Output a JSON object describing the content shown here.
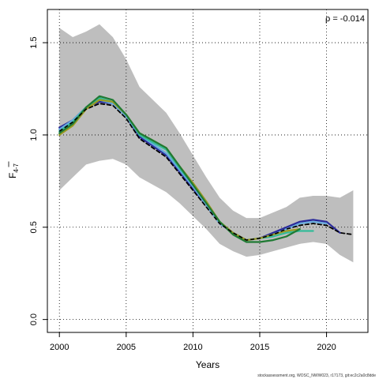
{
  "chart_data": {
    "type": "line",
    "title": "",
    "xlabel": "Years",
    "ylabel_main": "F",
    "ylabel_sub": "4-7",
    "xlim": [
      1999.1,
      2023.1
    ],
    "ylim": [
      -0.07,
      1.68
    ],
    "xticks": [
      2000,
      2005,
      2010,
      2015,
      2020
    ],
    "yticks": [
      0.0,
      0.5,
      1.0,
      1.5
    ],
    "ytick_labels": [
      "0.0",
      "0.5",
      "1.0",
      "1.5"
    ],
    "grid": true,
    "annotation": "ρ = -0.014",
    "footer": "stockassessment.org, WOSC_NWW023, r17173, git:ec2c2a0c8dde",
    "confidence_band": {
      "x": [
        2000,
        2001,
        2002,
        2003,
        2004,
        2005,
        2006,
        2007,
        2008,
        2009,
        2010,
        2011,
        2012,
        2013,
        2014,
        2015,
        2016,
        2017,
        2018,
        2019,
        2020,
        2021,
        2022
      ],
      "upper": [
        1.58,
        1.53,
        1.56,
        1.6,
        1.53,
        1.41,
        1.26,
        1.19,
        1.12,
        1.01,
        0.89,
        0.77,
        0.66,
        0.59,
        0.55,
        0.55,
        0.58,
        0.61,
        0.66,
        0.67,
        0.67,
        0.66,
        0.7
      ],
      "lower": [
        0.7,
        0.77,
        0.84,
        0.86,
        0.87,
        0.84,
        0.77,
        0.73,
        0.69,
        0.63,
        0.56,
        0.49,
        0.41,
        0.37,
        0.34,
        0.35,
        0.37,
        0.39,
        0.41,
        0.42,
        0.41,
        0.35,
        0.31
      ]
    },
    "series": [
      {
        "color": "#000000",
        "dashed": true,
        "width": 1.6,
        "x": [
          2000,
          2001,
          2002,
          2003,
          2004,
          2005,
          2006,
          2007,
          2008,
          2009,
          2010,
          2011,
          2012,
          2013,
          2014,
          2015,
          2016,
          2017,
          2018,
          2019,
          2020,
          2021,
          2022
        ],
        "values": [
          1.02,
          1.07,
          1.14,
          1.17,
          1.16,
          1.09,
          0.98,
          0.93,
          0.88,
          0.79,
          0.7,
          0.61,
          0.52,
          0.47,
          0.43,
          0.44,
          0.46,
          0.49,
          0.51,
          0.52,
          0.51,
          0.47,
          0.46
        ]
      },
      {
        "color": "#2a2a9a",
        "dashed": false,
        "width": 2.2,
        "x": [
          2000,
          2001,
          2002,
          2003,
          2004,
          2005,
          2006,
          2007,
          2008,
          2009,
          2010,
          2011,
          2012,
          2013,
          2014,
          2015,
          2016,
          2017,
          2018,
          2019,
          2020,
          2021
        ],
        "values": [
          1.04,
          1.08,
          1.15,
          1.18,
          1.17,
          1.1,
          0.99,
          0.94,
          0.89,
          0.8,
          0.71,
          0.62,
          0.52,
          0.47,
          0.43,
          0.44,
          0.47,
          0.5,
          0.53,
          0.54,
          0.53,
          0.47
        ]
      },
      {
        "color": "#66aadd",
        "dashed": false,
        "width": 2.2,
        "x": [
          2000,
          2001,
          2002,
          2003,
          2004,
          2005,
          2006,
          2007,
          2008,
          2009,
          2010,
          2011,
          2012,
          2013,
          2014,
          2015,
          2016,
          2017,
          2018,
          2019,
          2020
        ],
        "values": [
          1.03,
          1.08,
          1.15,
          1.19,
          1.17,
          1.1,
          1.0,
          0.95,
          0.9,
          0.81,
          0.72,
          0.62,
          0.52,
          0.47,
          0.43,
          0.44,
          0.46,
          0.49,
          0.52,
          0.53,
          0.52
        ]
      },
      {
        "color": "#33bb99",
        "dashed": false,
        "width": 2.2,
        "x": [
          2000,
          2001,
          2002,
          2003,
          2004,
          2005,
          2006,
          2007,
          2008,
          2009,
          2010,
          2011,
          2012,
          2013,
          2014,
          2015,
          2016,
          2017,
          2018,
          2019
        ],
        "values": [
          1.02,
          1.07,
          1.15,
          1.2,
          1.18,
          1.11,
          1.0,
          0.96,
          0.92,
          0.82,
          0.73,
          0.63,
          0.53,
          0.47,
          0.43,
          0.44,
          0.45,
          0.47,
          0.48,
          0.48
        ]
      },
      {
        "color": "#9a9a22",
        "dashed": false,
        "width": 2.2,
        "x": [
          2000,
          2001,
          2002,
          2003,
          2004,
          2005,
          2006,
          2007,
          2008,
          2009,
          2010,
          2011,
          2012,
          2013,
          2014,
          2015,
          2016,
          2017,
          2018
        ],
        "values": [
          1.0,
          1.05,
          1.14,
          1.19,
          1.18,
          1.11,
          1.01,
          0.97,
          0.93,
          0.83,
          0.74,
          0.64,
          0.53,
          0.47,
          0.43,
          0.44,
          0.46,
          0.48,
          0.49
        ]
      },
      {
        "color": "#1f7a33",
        "dashed": false,
        "width": 2.2,
        "x": [
          2000,
          2001,
          2002,
          2003,
          2004,
          2005,
          2006,
          2007,
          2008,
          2009,
          2010,
          2011,
          2012,
          2013,
          2014,
          2015,
          2016,
          2017,
          2018
        ],
        "values": [
          1.01,
          1.06,
          1.15,
          1.21,
          1.19,
          1.11,
          1.01,
          0.97,
          0.93,
          0.83,
          0.73,
          0.63,
          0.53,
          0.46,
          0.42,
          0.42,
          0.43,
          0.45,
          0.49
        ]
      }
    ]
  }
}
